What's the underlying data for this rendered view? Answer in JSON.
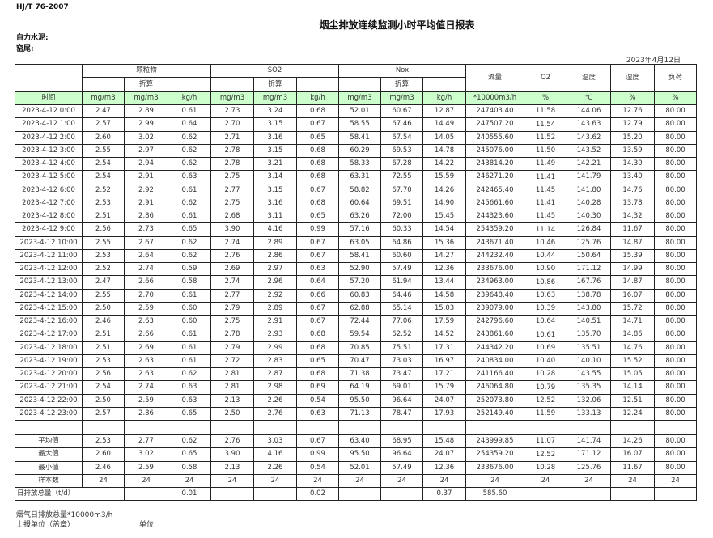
{
  "header": {
    "standard": "HJ/T  76-2007",
    "title": "烟尘排放连续监测小时平均值日报表",
    "company": "自力水泥:",
    "site": "窑尾:",
    "date": "2023年4月12日"
  },
  "columns": {
    "groups": {
      "particulate": "颗粒物",
      "so2": "SO2",
      "nox": "Nox",
      "flow": "流量",
      "o2": "O2",
      "temp": "温度",
      "humidity": "湿度",
      "load": "负荷"
    },
    "converted": "折算",
    "units": [
      "时间",
      "mg/m3",
      "mg/m3",
      "kg/h",
      "mg/m3",
      "mg/m3",
      "kg/h",
      "mg/m3",
      "mg/m3",
      "kg/h",
      "*10000m3/h",
      "%",
      "℃",
      "%",
      "%"
    ]
  },
  "rows": [
    [
      "2023-4-12 0:00",
      "2.47",
      "2.89",
      "0.61",
      "2.73",
      "3.24",
      "0.68",
      "52.01",
      "60.67",
      "12.87",
      "247403.40",
      "11.58",
      "144.06",
      "12.76",
      "80.00"
    ],
    [
      "2023-4-12 1:00",
      "2.57",
      "2.99",
      "0.64",
      "2.70",
      "3.15",
      "0.67",
      "58.55",
      "67.46",
      "14.49",
      "247507.20",
      "11.54",
      "143.63",
      "12.79",
      "80.00"
    ],
    [
      "2023-4-12 2:00",
      "2.60",
      "3.02",
      "0.62",
      "2.71",
      "3.16",
      "0.65",
      "58.41",
      "67.54",
      "14.05",
      "240555.60",
      "11.52",
      "143.62",
      "15.20",
      "80.00"
    ],
    [
      "2023-4-12 3:00",
      "2.55",
      "2.97",
      "0.62",
      "2.78",
      "3.15",
      "0.68",
      "60.29",
      "69.53",
      "14.78",
      "245076.00",
      "11.50",
      "143.52",
      "13.59",
      "80.00"
    ],
    [
      "2023-4-12 4:00",
      "2.54",
      "2.94",
      "0.62",
      "2.78",
      "3.21",
      "0.68",
      "58.33",
      "67.28",
      "14.22",
      "243814.20",
      "11.49",
      "142.21",
      "14.30",
      "80.00"
    ],
    [
      "2023-4-12 5:00",
      "2.54",
      "2.91",
      "0.63",
      "2.75",
      "3.14",
      "0.68",
      "63.31",
      "72.55",
      "15.59",
      "246271.20",
      "11.41",
      "141.79",
      "13.40",
      "80.00"
    ],
    [
      "2023-4-12 6:00",
      "2.52",
      "2.92",
      "0.61",
      "2.77",
      "3.15",
      "0.67",
      "58.82",
      "67.70",
      "14.26",
      "242465.40",
      "11.45",
      "141.80",
      "14.76",
      "80.00"
    ],
    [
      "2023-4-12 7:00",
      "2.53",
      "2.91",
      "0.62",
      "2.75",
      "3.16",
      "0.68",
      "60.64",
      "69.51",
      "14.90",
      "245661.60",
      "11.41",
      "140.28",
      "13.78",
      "80.00"
    ],
    [
      "2023-4-12 8:00",
      "2.51",
      "2.86",
      "0.61",
      "2.68",
      "3.11",
      "0.65",
      "63.26",
      "72.00",
      "15.45",
      "244323.60",
      "11.45",
      "140.30",
      "14.32",
      "80.00"
    ],
    [
      "2023-4-12 9:00",
      "2.56",
      "2.73",
      "0.65",
      "3.90",
      "4.16",
      "0.99",
      "57.16",
      "60.33",
      "14.54",
      "254359.20",
      "11.14",
      "126.84",
      "11.67",
      "80.00"
    ],
    [
      "2023-4-12 10:00",
      "2.55",
      "2.67",
      "0.62",
      "2.74",
      "2.89",
      "0.67",
      "63.05",
      "64.86",
      "15.36",
      "243671.40",
      "10.46",
      "125.76",
      "14.87",
      "80.00"
    ],
    [
      "2023-4-12 11:00",
      "2.53",
      "2.64",
      "0.62",
      "2.76",
      "2.86",
      "0.67",
      "58.41",
      "60.60",
      "14.27",
      "244232.40",
      "10.44",
      "150.64",
      "15.39",
      "80.00"
    ],
    [
      "2023-4-12 12:00",
      "2.52",
      "2.74",
      "0.59",
      "2.69",
      "2.97",
      "0.63",
      "52.90",
      "57.49",
      "12.36",
      "233676.00",
      "10.90",
      "171.12",
      "14.99",
      "80.00"
    ],
    [
      "2023-4-12 13:00",
      "2.47",
      "2.66",
      "0.58",
      "2.74",
      "2.96",
      "0.64",
      "57.20",
      "61.94",
      "13.44",
      "234963.00",
      "10.86",
      "167.76",
      "14.87",
      "80.00"
    ],
    [
      "2023-4-12 14:00",
      "2.55",
      "2.70",
      "0.61",
      "2.77",
      "2.92",
      "0.66",
      "60.83",
      "64.46",
      "14.58",
      "239648.40",
      "10.63",
      "138.78",
      "16.07",
      "80.00"
    ],
    [
      "2023-4-12 15:00",
      "2.50",
      "2.59",
      "0.60",
      "2.79",
      "2.89",
      "0.67",
      "62.88",
      "65.14",
      "15.03",
      "239079.00",
      "10.39",
      "143.80",
      "15.72",
      "80.00"
    ],
    [
      "2023-4-12 16:00",
      "2.46",
      "2.63",
      "0.60",
      "2.75",
      "2.91",
      "0.67",
      "72.44",
      "77.06",
      "17.59",
      "242796.60",
      "10.64",
      "140.51",
      "14.71",
      "80.00"
    ],
    [
      "2023-4-12 17:00",
      "2.51",
      "2.66",
      "0.61",
      "2.78",
      "2.93",
      "0.68",
      "59.54",
      "62.52",
      "14.52",
      "243861.60",
      "10.61",
      "135.70",
      "14.86",
      "80.00"
    ],
    [
      "2023-4-12 18:00",
      "2.51",
      "2.69",
      "0.61",
      "2.79",
      "2.99",
      "0.68",
      "70.85",
      "75.51",
      "17.31",
      "244342.20",
      "10.69",
      "135.51",
      "14.76",
      "80.00"
    ],
    [
      "2023-4-12 19:00",
      "2.53",
      "2.63",
      "0.61",
      "2.72",
      "2.83",
      "0.65",
      "70.47",
      "73.03",
      "16.97",
      "240834.00",
      "10.40",
      "140.10",
      "15.52",
      "80.00"
    ],
    [
      "2023-4-12 20:00",
      "2.56",
      "2.63",
      "0.62",
      "2.81",
      "2.87",
      "0.68",
      "71.38",
      "73.47",
      "17.21",
      "241166.40",
      "10.28",
      "143.55",
      "15.05",
      "80.00"
    ],
    [
      "2023-4-12 21:00",
      "2.54",
      "2.74",
      "0.63",
      "2.81",
      "2.98",
      "0.69",
      "64.19",
      "69.01",
      "15.79",
      "246064.80",
      "10.79",
      "135.35",
      "14.14",
      "80.00"
    ],
    [
      "2023-4-12 22:00",
      "2.50",
      "2.59",
      "0.63",
      "2.13",
      "2.26",
      "0.54",
      "95.50",
      "96.64",
      "24.07",
      "252073.80",
      "12.52",
      "132.06",
      "12.51",
      "80.00"
    ],
    [
      "2023-4-12 23:00",
      "2.57",
      "2.86",
      "0.65",
      "2.50",
      "2.76",
      "0.63",
      "71.13",
      "78.47",
      "17.93",
      "252149.40",
      "11.59",
      "133.13",
      "12.24",
      "80.00"
    ]
  ],
  "stats": [
    [
      "平均值",
      "2.53",
      "2.77",
      "0.62",
      "2.76",
      "3.03",
      "0.67",
      "63.40",
      "68.95",
      "15.48",
      "243999.85",
      "11.07",
      "141.74",
      "14.26",
      "80.00"
    ],
    [
      "最大值",
      "2.60",
      "3.02",
      "0.65",
      "3.90",
      "4.16",
      "0.99",
      "95.50",
      "96.64",
      "24.07",
      "254359.20",
      "12.52",
      "171.12",
      "16.07",
      "80.00"
    ],
    [
      "最小值",
      "2.46",
      "2.59",
      "0.58",
      "2.13",
      "2.26",
      "0.54",
      "52.01",
      "57.49",
      "12.36",
      "233676.00",
      "10.28",
      "125.76",
      "11.67",
      "80.00"
    ],
    [
      "样本数",
      "24",
      "24",
      "24",
      "24",
      "24",
      "24",
      "24",
      "24",
      "24",
      "24",
      "24",
      "24",
      "24",
      "24"
    ]
  ],
  "daily_total": {
    "label": "日排放总量（t/d）",
    "values": [
      "",
      "0.01",
      "",
      "",
      "0.02",
      "",
      "",
      "0.37",
      "585.60",
      "",
      "",
      "",
      ""
    ]
  },
  "footer": {
    "flue_gas_note": "烟气日排放总量*10000m3/h",
    "reporting_unit": "上报单位（盖章）",
    "unit": "单位"
  }
}
